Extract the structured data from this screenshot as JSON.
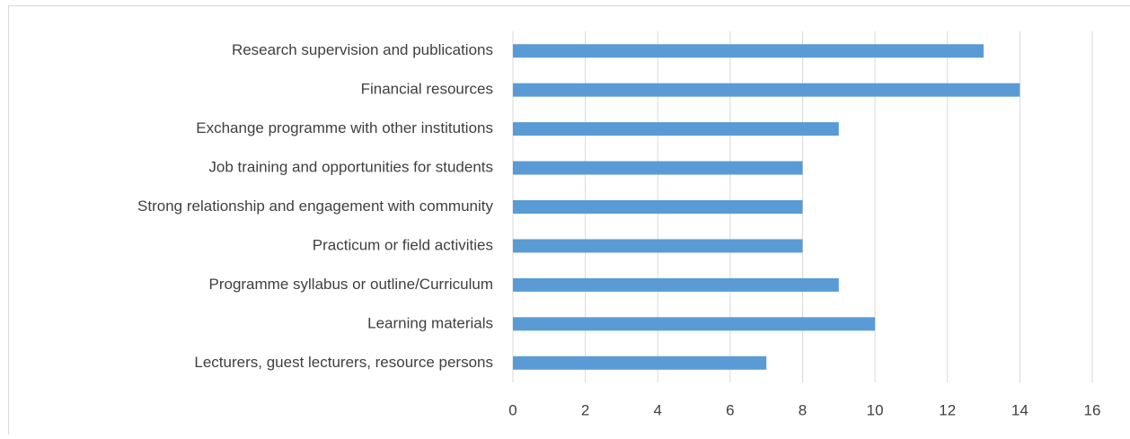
{
  "chart_data": {
    "type": "bar",
    "orientation": "horizontal",
    "categories": [
      "Research supervision and publications",
      "Financial resources ",
      "Exchange programme with other institutions",
      "Job training and opportunities for students",
      "Strong relationship and engagement with community",
      "Practicum or field activities",
      "Programme syllabus or outline/Curriculum",
      "Learning materials",
      "Lecturers, guest lecturers, resource persons"
    ],
    "values": [
      13,
      14,
      9,
      8,
      8,
      8,
      9,
      10,
      7
    ],
    "color": "#5b9bd5",
    "xlim": [
      0,
      16
    ],
    "xticks": [
      0,
      2,
      4,
      6,
      8,
      10,
      12,
      14,
      16
    ],
    "grid": true
  }
}
